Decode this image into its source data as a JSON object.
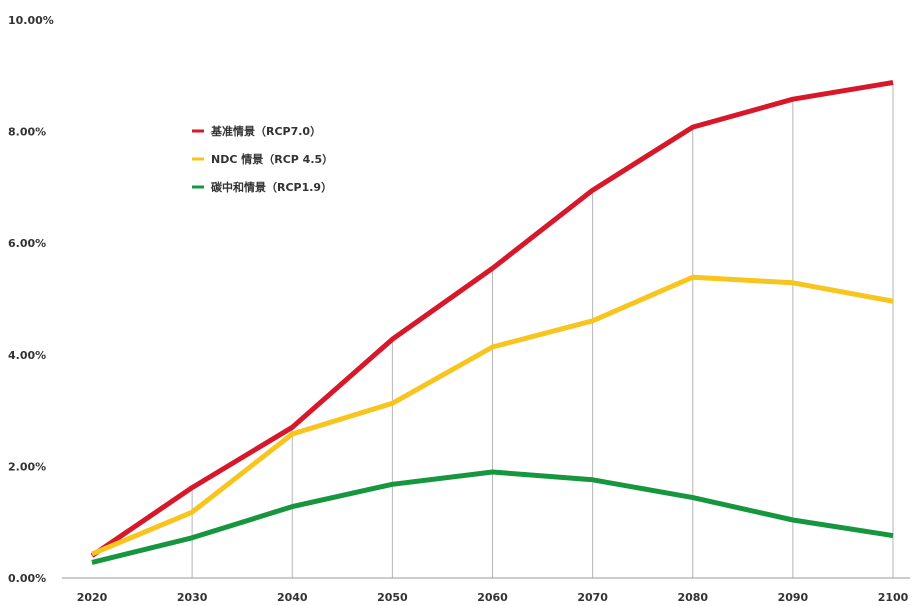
{
  "chart_data": {
    "type": "line",
    "x": [
      2020,
      2030,
      2040,
      2050,
      2060,
      2070,
      2080,
      2090,
      2100
    ],
    "categories": [
      "2020",
      "2030",
      "2040",
      "2050",
      "2060",
      "2070",
      "2080",
      "2090",
      "2100"
    ],
    "ytick_labels": [
      "0.00%",
      "2.00%",
      "4.00%",
      "6.00%",
      "8.00%",
      "10.00%"
    ],
    "yticks": [
      0,
      2,
      4,
      6,
      8,
      10
    ],
    "ylim": [
      0,
      10
    ],
    "grid": "vertical",
    "legend_position": "top-left",
    "series": [
      {
        "name": "基准情景（RCP7.0）",
        "color": "#d7182a",
        "values": [
          0.4,
          1.62,
          2.7,
          4.28,
          5.55,
          6.95,
          8.08,
          8.58,
          8.88
        ]
      },
      {
        "name": "NDC 情景（RCP 4.5）",
        "color": "#f7c51e",
        "values": [
          0.43,
          1.18,
          2.58,
          3.13,
          4.14,
          4.61,
          5.39,
          5.29,
          4.96
        ]
      },
      {
        "name": "碳中和情景（RCP1.9）",
        "color": "#16963e",
        "values": [
          0.28,
          0.72,
          1.28,
          1.68,
          1.9,
          1.76,
          1.44,
          1.04,
          0.76
        ]
      }
    ]
  }
}
